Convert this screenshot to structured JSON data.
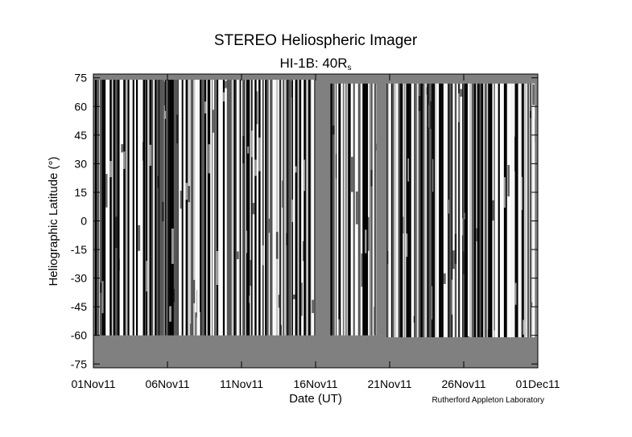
{
  "chart_data": {
    "type": "image",
    "title": "STEREO Heliospheric Imager",
    "subtitle": "HI-1B: 40R",
    "subtitle_subscript": "s",
    "xlabel": "Date (UT)",
    "ylabel": "Heliographic Latitude (°)",
    "credit": "Rutherford Appleton Laboratory",
    "background": "#808080",
    "xlim": [
      0,
      30
    ],
    "xticks": [
      {
        "value": 0,
        "label": "01Nov11"
      },
      {
        "value": 5,
        "label": "06Nov11"
      },
      {
        "value": 10,
        "label": "11Nov11"
      },
      {
        "value": 15,
        "label": "16Nov11"
      },
      {
        "value": 20,
        "label": "21Nov11"
      },
      {
        "value": 25,
        "label": "26Nov11"
      },
      {
        "value": 30,
        "label": "01Dec11"
      }
    ],
    "ylim": [
      -77,
      77
    ],
    "yticks": [
      75,
      60,
      45,
      30,
      15,
      0,
      -15,
      -30,
      -45,
      -60,
      -75
    ],
    "segments": [
      {
        "start": 0.1,
        "end": 15.0,
        "lat_min": -60,
        "lat_max": 74
      },
      {
        "start": 16.0,
        "end": 19.1,
        "lat_min": -60,
        "lat_max": 72
      },
      {
        "start": 19.8,
        "end": 29.8,
        "lat_min": -61,
        "lat_max": 72
      }
    ]
  }
}
